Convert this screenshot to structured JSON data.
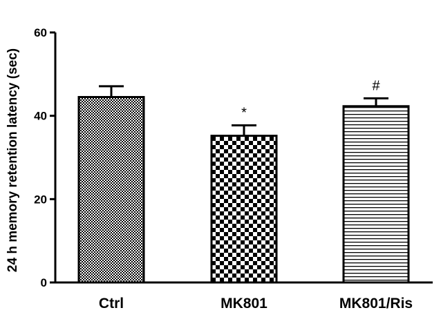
{
  "chart_data": {
    "type": "bar",
    "title": "",
    "xlabel": "",
    "ylabel": "24 h memory retention latency (sec)",
    "ylim": [
      0,
      60
    ],
    "yticks": [
      0,
      20,
      40,
      60
    ],
    "grid": false,
    "categories": [
      "Ctrl",
      "MK801",
      "MK801/Ris"
    ],
    "values": [
      44.5,
      35.2,
      42.3
    ],
    "errors": [
      2.6,
      2.5,
      1.9
    ],
    "annotations": [
      "",
      "*",
      "#"
    ],
    "patterns": [
      "fine-checker",
      "coarse-checker",
      "horizontal-lines"
    ],
    "bar_fill_color": "#000000"
  }
}
